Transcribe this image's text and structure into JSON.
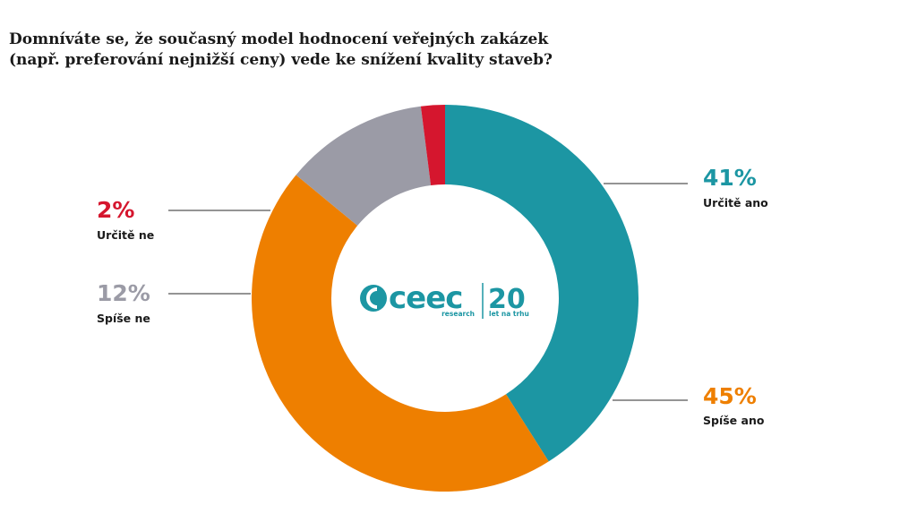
{
  "chart_data": {
    "type": "pie",
    "title_lines": [
      "Domníváte se, že současný model hodnocení veřejných zakázek",
      "(např. preferování nejnižší ceny) vede ke snížení kvality staveb?"
    ],
    "slices": [
      {
        "label": "Určitě ano",
        "percent_label": "41%",
        "value": 41,
        "color": "#1c96a3"
      },
      {
        "label": "Spíše ano",
        "percent_label": "45%",
        "value": 45,
        "color": "#ee7f00"
      },
      {
        "label": "Spíše ne",
        "percent_label": "12%",
        "value": 12,
        "color": "#9b9ba6"
      },
      {
        "label": "Určitě ne",
        "percent_label": "2%",
        "value": 2,
        "color": "#d5162e"
      }
    ]
  },
  "logo": {
    "brand": "ceec",
    "sub_left": "research",
    "number": "20",
    "sub_right": "let na trhu",
    "color": "#1c96a3"
  }
}
